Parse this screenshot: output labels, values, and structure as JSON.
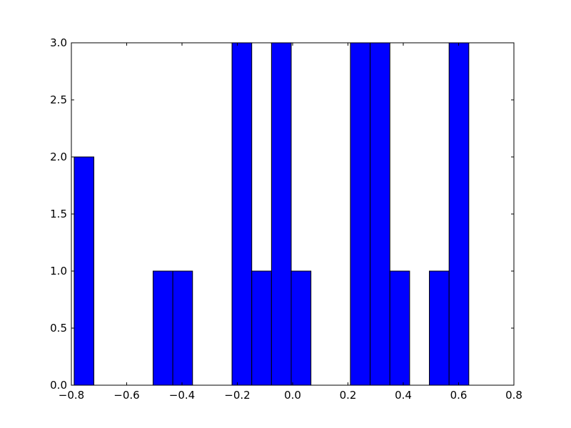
{
  "chart_data": {
    "type": "histogram",
    "bins": [
      -0.79,
      -0.71865,
      -0.6473,
      -0.57595,
      -0.5046,
      -0.43325,
      -0.3619,
      -0.29055,
      -0.2192,
      -0.14785,
      -0.0765,
      -0.00515,
      0.0662,
      0.13755,
      0.2089,
      0.28025,
      0.3516,
      0.42295,
      0.4943,
      0.56565,
      0.637
    ],
    "counts": [
      2,
      0,
      0,
      0,
      1,
      1,
      0,
      0,
      3,
      1,
      3,
      1,
      0,
      0,
      3,
      3,
      1,
      0,
      1,
      3
    ],
    "color": "#0000ff",
    "xlim": [
      -0.8,
      0.8
    ],
    "xticks": [
      {
        "value": -0.8,
        "label": "−0.8"
      },
      {
        "value": -0.6,
        "label": "−0.6"
      },
      {
        "value": -0.4,
        "label": "−0.4"
      },
      {
        "value": -0.2,
        "label": "−0.2"
      },
      {
        "value": 0,
        "label": "0.0"
      },
      {
        "value": 0.2,
        "label": "0.2"
      },
      {
        "value": 0.4,
        "label": "0.4"
      },
      {
        "value": 0.6,
        "label": "0.6"
      },
      {
        "value": 0.8,
        "label": "0.8"
      }
    ],
    "ylim": [
      0,
      3
    ],
    "yticks": [
      {
        "value": 0,
        "label": "0.0"
      },
      {
        "value": 0.5,
        "label": "0.5"
      },
      {
        "value": 1,
        "label": "1.0"
      },
      {
        "value": 1.5,
        "label": "1.5"
      },
      {
        "value": 2,
        "label": "2.0"
      },
      {
        "value": 2.5,
        "label": "2.5"
      },
      {
        "value": 3,
        "label": "3.0"
      }
    ],
    "grid": false
  }
}
